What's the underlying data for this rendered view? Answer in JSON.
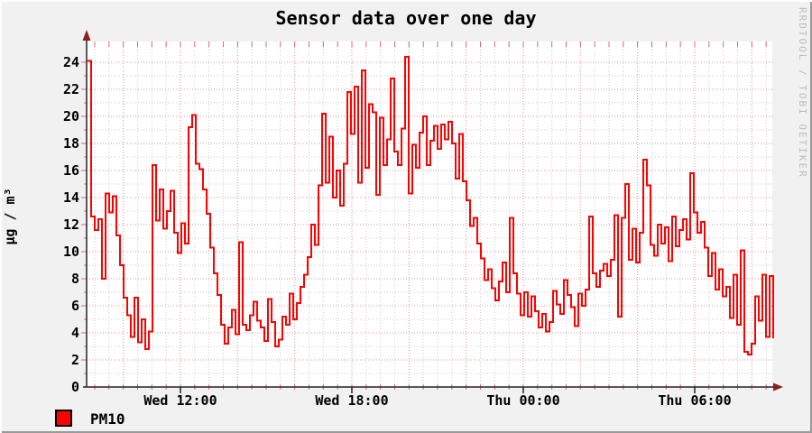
{
  "watermark": "RRDTOOL / TOBI OETIKER",
  "colors": {
    "background": "#f1f1f1",
    "canvas": "#ffffff",
    "line": "#ff0000",
    "grid_minor": "#cfcfcf",
    "grid_major": "#e39494",
    "axis": "#222222",
    "arrow": "#8b2020",
    "axis_tick_red": "#d96b6b",
    "watermark_text": "#bcbcbc"
  },
  "chart_data": {
    "type": "line",
    "title": "Sensor data over one day",
    "xlabel": "",
    "ylabel": "µg / m³",
    "ylim": [
      0,
      24
    ],
    "y_ticks": [
      0,
      2,
      4,
      6,
      8,
      10,
      12,
      14,
      16,
      18,
      20,
      22,
      24
    ],
    "x_tick_labels": [
      "Wed 12:00",
      "Wed 18:00",
      "Thu 00:00",
      "Thu 06:00"
    ],
    "x_ticks": [
      {
        "label": "Wed 12:00",
        "hour": 12
      },
      {
        "label": "Wed 18:00",
        "hour": 18
      },
      {
        "label": "Thu 00:00",
        "hour": 24
      },
      {
        "label": "Thu 06:00",
        "hour": 30
      }
    ],
    "x_range_hours": [
      8.716,
      32.716
    ],
    "grid": {
      "enabled": true,
      "style": "dotted",
      "vertical_minor_step_hours": 0.5,
      "vertical_major_step_hours": 2,
      "horizontal_minor_step": 1,
      "horizontal_major_step": 2
    },
    "legend_position": "bottom-left",
    "series": [
      {
        "name": "PM10",
        "color": "#ff0000",
        "unit": "µg / m³",
        "values": [
          24.1,
          12.6,
          11.6,
          12.4,
          8.0,
          14.3,
          12.9,
          14.1,
          11.2,
          9.0,
          6.6,
          5.3,
          3.7,
          6.6,
          3.3,
          5.0,
          2.8,
          4.1,
          16.4,
          12.3,
          14.6,
          11.7,
          13.0,
          14.5,
          11.4,
          9.9,
          12.1,
          10.6,
          19.2,
          20.1,
          16.5,
          16.1,
          14.6,
          12.8,
          10.3,
          8.4,
          6.8,
          4.6,
          3.2,
          4.4,
          5.7,
          3.9,
          10.7,
          4.6,
          4.2,
          5.3,
          6.3,
          4.9,
          4.4,
          3.4,
          6.5,
          4.8,
          3.0,
          3.5,
          5.2,
          4.6,
          6.9,
          5.0,
          6.2,
          7.4,
          8.3,
          9.6,
          12.0,
          10.5,
          14.9,
          20.2,
          15.1,
          18.5,
          14.0,
          16.0,
          13.4,
          16.5,
          21.8,
          18.7,
          22.2,
          15.1,
          23.4,
          16.2,
          20.9,
          20.3,
          14.2,
          19.9,
          16.4,
          18.3,
          22.8,
          17.4,
          16.4,
          19.1,
          24.4,
          14.3,
          17.9,
          16.2,
          18.8,
          20.0,
          16.4,
          18.2,
          19.3,
          17.6,
          19.4,
          18.3,
          19.6,
          18.0,
          15.4,
          18.7,
          15.2,
          13.8,
          11.9,
          12.5,
          10.6,
          9.5,
          7.9,
          8.7,
          7.3,
          6.4,
          7.8,
          9.2,
          7.0,
          12.5,
          8.4,
          6.9,
          5.3,
          7.0,
          5.2,
          6.7,
          5.6,
          4.4,
          5.4,
          4.1,
          4.8,
          7.1,
          6.1,
          5.4,
          7.9,
          6.8,
          5.9,
          4.5,
          6.9,
          6.0,
          7.2,
          12.6,
          8.4,
          7.4,
          8.6,
          9.1,
          8.2,
          9.4,
          12.7,
          5.2,
          12.5,
          15.0,
          9.4,
          11.7,
          9.2,
          11.4,
          16.8,
          14.9,
          10.5,
          9.7,
          12.0,
          10.6,
          11.8,
          9.3,
          12.6,
          10.4,
          11.6,
          12.4,
          10.9,
          15.8,
          12.9,
          11.4,
          12.2,
          10.3,
          8.2,
          9.9,
          7.2,
          8.7,
          6.7,
          7.4,
          5.1,
          8.3,
          4.6,
          10.1,
          2.6,
          2.4,
          3.2,
          6.7,
          4.9,
          8.3,
          3.7,
          8.2,
          3.6
        ]
      }
    ]
  }
}
